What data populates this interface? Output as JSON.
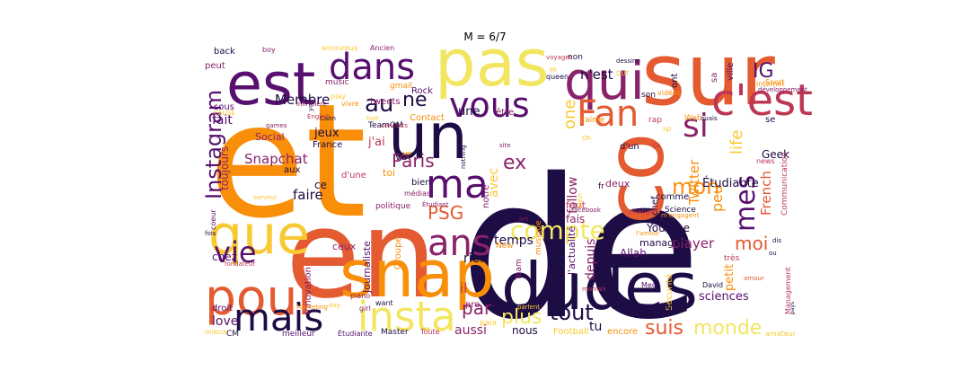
{
  "title": "M = 6/7",
  "palette": [
    "#1e0c45",
    "#57106e",
    "#8a226a",
    "#bc3754",
    "#e45a31",
    "#f98e09",
    "#f9c932",
    "#f2e661"
  ],
  "words": [
    {
      "text": "de",
      "color": "#1e0c45"
    },
    {
      "text": "et",
      "color": "#f98e09"
    },
    {
      "text": "en",
      "color": "#e45a31"
    },
    {
      "text": "sur",
      "color": "#e45a31"
    },
    {
      "text": "pas",
      "color": "#f2e661"
    },
    {
      "text": "dudes",
      "color": "#1e0c45"
    },
    {
      "text": "snap",
      "color": "#f98e09"
    },
    {
      "text": "pour",
      "color": "#e45a31"
    },
    {
      "text": "est",
      "color": "#57106e"
    },
    {
      "text": "un",
      "color": "#1e0c45"
    },
    {
      "text": "que",
      "color": "#f9c932"
    },
    {
      "text": "co",
      "color": "#e45a31"
    },
    {
      "text": "qui",
      "color": "#8a226a"
    },
    {
      "text": "c'est",
      "color": "#bc3754"
    },
    {
      "text": "insta",
      "color": "#f2e661"
    },
    {
      "text": "mais",
      "color": "#1e0c45"
    },
    {
      "text": "dans",
      "color": "#57106e"
    },
    {
      "text": "vous",
      "color": "#57106e"
    },
    {
      "text": "Fan",
      "color": "#e45a31"
    },
    {
      "text": "si",
      "color": "#8a226a"
    },
    {
      "text": "ma",
      "color": "#57106e"
    },
    {
      "text": "ans",
      "color": "#8a226a"
    },
    {
      "text": "vie",
      "color": "#57106e"
    },
    {
      "text": "Instagram",
      "color": "#57106e"
    },
    {
      "text": "mes",
      "color": "#57106e"
    },
    {
      "text": "IG",
      "color": "#57106e"
    },
    {
      "text": "au",
      "color": "#1e0c45"
    },
    {
      "text": "ne",
      "color": "#1e0c45"
    },
    {
      "text": "Paris",
      "color": "#8a226a"
    },
    {
      "text": "ex",
      "color": "#8a226a"
    },
    {
      "text": "mon",
      "color": "#f98e09"
    },
    {
      "text": "compte",
      "color": "#f2e661"
    },
    {
      "text": "PSG",
      "color": "#e45a31"
    },
    {
      "text": "tout",
      "color": "#1e0c45"
    },
    {
      "text": "suis",
      "color": "#e45a31"
    },
    {
      "text": "moi",
      "color": "#e45a31"
    },
    {
      "text": "monde",
      "color": "#f2e661"
    },
    {
      "text": "plus",
      "color": "#f2e661"
    },
    {
      "text": "par",
      "color": "#8a226a"
    },
    {
      "text": "Membre",
      "color": "#1e0c45"
    },
    {
      "text": "Snapchat",
      "color": "#8a226a"
    },
    {
      "text": "faire",
      "color": "#1e0c45"
    },
    {
      "text": "player",
      "color": "#8a226a"
    },
    {
      "text": "Twitter",
      "color": "#f98e09"
    },
    {
      "text": "one",
      "color": "#f9c932"
    },
    {
      "text": "life",
      "color": "#f9c932"
    },
    {
      "text": "French",
      "color": "#e45a31"
    },
    {
      "text": "peu",
      "color": "#f98e09"
    },
    {
      "text": "love",
      "color": "#57106e"
    },
    {
      "text": "fait",
      "color": "#57106e"
    },
    {
      "text": "aussi",
      "color": "#8a226a"
    },
    {
      "text": "nous",
      "color": "#1e0c45"
    },
    {
      "text": "temps",
      "color": "#1e0c45"
    },
    {
      "text": "rien",
      "color": "#1e0c45"
    },
    {
      "text": "il",
      "color": "#bc3754"
    },
    {
      "text": "depuis",
      "color": "#8a226a"
    },
    {
      "text": "follow",
      "color": "#8a226a"
    },
    {
      "text": "avec",
      "color": "#f9c932"
    },
    {
      "text": "sciences",
      "color": "#57106e"
    },
    {
      "text": "tu",
      "color": "#1e0c45"
    },
    {
      "text": "jeux",
      "color": "#1e0c45"
    },
    {
      "text": "j'ai",
      "color": "#bc3754"
    },
    {
      "text": "toujours",
      "color": "#8a226a"
    },
    {
      "text": "Journaliste",
      "color": "#57106e"
    },
    {
      "text": "Innovation",
      "color": "#8a226a"
    },
    {
      "text": "Groupe",
      "color": "#f98e09"
    },
    {
      "text": "une",
      "color": "#1e0c45"
    },
    {
      "text": "n'est",
      "color": "#1e0c45"
    },
    {
      "text": "Étudiante",
      "color": "#1e0c45"
    },
    {
      "text": "Youtube",
      "color": "#1e0c45"
    },
    {
      "text": "Allah",
      "color": "#57106e"
    },
    {
      "text": "manager",
      "color": "#1e0c45"
    },
    {
      "text": "fais",
      "color": "#8a226a"
    },
    {
      "text": "faut",
      "color": "#bc3754"
    },
    {
      "text": "deux",
      "color": "#8a226a"
    },
    {
      "text": "va",
      "color": "#1e0c45"
    },
    {
      "text": "ce",
      "color": "#1e0c45"
    },
    {
      "text": "chez",
      "color": "#57106e"
    },
    {
      "text": "ceux",
      "color": "#8a226a"
    },
    {
      "text": "Social",
      "color": "#8a226a"
    },
    {
      "text": "France",
      "color": "#1e0c45"
    },
    {
      "text": "aux",
      "color": "#1e0c45"
    },
    {
      "text": "Rock",
      "color": "#57106e"
    },
    {
      "text": "Contact",
      "color": "#f98e09"
    },
    {
      "text": "tweets",
      "color": "#8a226a"
    },
    {
      "text": "TeamOM",
      "color": "#1e0c45"
    },
    {
      "text": "être",
      "color": "#8a226a"
    },
    {
      "text": "se",
      "color": "#1e0c45"
    },
    {
      "text": "Geek",
      "color": "#1e0c45"
    },
    {
      "text": "Communication",
      "color": "#bc3754"
    },
    {
      "text": "comme",
      "color": "#1e0c45"
    },
    {
      "text": "chef",
      "color": "#1e0c45"
    },
    {
      "text": "d'un",
      "color": "#1e0c45"
    },
    {
      "text": "l'actualité",
      "color": "#57106e"
    },
    {
      "text": "très",
      "color": "#bc3754"
    },
    {
      "text": "petit",
      "color": "#f98e09"
    },
    {
      "text": "Management",
      "color": "#bc3754"
    },
    {
      "text": "Football",
      "color": "#f9c932"
    },
    {
      "text": "encore",
      "color": "#f98e09"
    },
    {
      "text": "Team",
      "color": "#8a226a"
    },
    {
      "text": "New",
      "color": "#f98e09"
    },
    {
      "text": "pro",
      "color": "#8a226a"
    },
    {
      "text": "paix",
      "color": "#f9c932"
    },
    {
      "text": "Master",
      "color": "#1e0c45"
    },
    {
      "text": "Toute",
      "color": "#bc3754"
    },
    {
      "text": "droit",
      "color": "#57106e"
    },
    {
      "text": "sous",
      "color": "#57106e"
    },
    {
      "text": "back",
      "color": "#1e0c45"
    },
    {
      "text": "peut",
      "color": "#8a226a"
    },
    {
      "text": "gmail",
      "color": "#f98e09"
    },
    {
      "text": "music",
      "color": "#8a226a"
    },
    {
      "text": "non",
      "color": "#1e0c45"
    },
    {
      "text": "J'aime",
      "color": "#f98e09"
    },
    {
      "text": "rap",
      "color": "#bc3754"
    },
    {
      "text": "Web",
      "color": "#f98e09"
    },
    {
      "text": "sa",
      "color": "#8a226a"
    },
    {
      "text": "ville",
      "color": "#57106e"
    },
    {
      "text": "Sport",
      "color": "#f98e09"
    },
    {
      "text": "news",
      "color": "#bc3754"
    },
    {
      "text": "CM",
      "color": "#1e0c45"
    },
    {
      "text": "meilleur",
      "color": "#57106e"
    },
    {
      "text": "Étudiante",
      "color": "#57106e"
    },
    {
      "text": "mieux",
      "color": "#f9c932"
    },
    {
      "text": "amateur",
      "color": "#f9c932"
    },
    {
      "text": "amour",
      "color": "#e45a31"
    },
    {
      "text": "David",
      "color": "#1e0c45"
    },
    {
      "text": "Science",
      "color": "#1e0c45"
    },
    {
      "text": "Mec",
      "color": "#57106e"
    },
    {
      "text": "maman",
      "color": "#bc3754"
    },
    {
      "text": "Sécurité",
      "color": "#f9c932"
    },
    {
      "text": "ni",
      "color": "#1e0c45"
    },
    {
      "text": "notre",
      "color": "#8a226a"
    },
    {
      "text": "musique",
      "color": "#f98e09"
    },
    {
      "text": "fr",
      "color": "#1e0c45"
    },
    {
      "text": "bien",
      "color": "#1e0c45"
    },
    {
      "text": "toi",
      "color": "#f98e09"
    },
    {
      "text": "d'une",
      "color": "#bc3754"
    },
    {
      "text": "politique",
      "color": "#8a226a"
    },
    {
      "text": "médias",
      "color": "#8a226a"
    },
    {
      "text": "piano",
      "color": "#8a226a"
    },
    {
      "text": "girl",
      "color": "#8a226a"
    },
    {
      "text": "want",
      "color": "#1e0c45"
    },
    {
      "text": "day",
      "color": "#f9c932"
    },
    {
      "text": "Marketing",
      "color": "#f98e09"
    },
    {
      "text": "fondateur",
      "color": "#bc3754"
    },
    {
      "text": "fois",
      "color": "#1e0c45"
    },
    {
      "text": "coeur",
      "color": "#57106e"
    },
    {
      "text": "serveur",
      "color": "#f9c932"
    },
    {
      "text": "boy",
      "color": "#8a226a"
    },
    {
      "text": "amoureux",
      "color": "#f9c932"
    },
    {
      "text": "Ancien",
      "color": "#8a226a"
    },
    {
      "text": "dessine",
      "color": "#1e0c45"
    },
    {
      "text": "play",
      "color": "#f9c932"
    },
    {
      "text": "vivre",
      "color": "#f98e09"
    },
    {
      "text": "yo",
      "color": "#1e0c45"
    },
    {
      "text": "infirmière",
      "color": "#8a226a"
    },
    {
      "text": "Caen",
      "color": "#1e0c45"
    },
    {
      "text": "English",
      "color": "#bc3754"
    },
    {
      "text": "games",
      "color": "#8a226a"
    },
    {
      "text": "CAUSE",
      "color": "#f9c932"
    },
    {
      "text": "foot",
      "color": "#f9c932"
    },
    {
      "text": "concerts",
      "color": "#bc3754"
    },
    {
      "text": "MP",
      "color": "#f98e09"
    },
    {
      "text": "nothing",
      "color": "#1e0c45"
    },
    {
      "text": "site",
      "color": "#8a226a"
    },
    {
      "text": "art",
      "color": "#8a226a"
    },
    {
      "text": "parlent",
      "color": "#f9c932"
    },
    {
      "text": "Oh",
      "color": "#f9c932"
    },
    {
      "text": "queen",
      "color": "#1e0c45"
    },
    {
      "text": "voyages",
      "color": "#bc3754"
    },
    {
      "text": "DUT",
      "color": "#f9c932"
    },
    {
      "text": "son",
      "color": "#1e0c45"
    },
    {
      "text": "vidéos",
      "color": "#f98e09"
    },
    {
      "text": "ont",
      "color": "#1e0c45"
    },
    {
      "text": "ouais",
      "color": "#1e0c45"
    },
    {
      "text": "internet",
      "color": "#f98e09"
    },
    {
      "text": "développement",
      "color": "#8a226a"
    },
    {
      "text": "ou",
      "color": "#1e0c45"
    },
    {
      "text": "dis",
      "color": "#1e0c45"
    },
    {
      "text": "pays",
      "color": "#1e0c45"
    },
    {
      "text": "changer",
      "color": "#bc3754"
    },
    {
      "text": "m'engagent",
      "color": "#f98e09"
    },
    {
      "text": "l'amour",
      "color": "#f98e09"
    },
    {
      "text": "plein",
      "color": "#f9c932"
    },
    {
      "text": "Facebook",
      "color": "#8a226a"
    },
    {
      "text": "Étudiant",
      "color": "#8a226a"
    },
    {
      "text": "Mi",
      "color": "#f9c932"
    },
    {
      "text": "sp",
      "color": "#f9c932"
    },
    {
      "text": "ça",
      "color": "#bc3754"
    },
    {
      "text": "d'",
      "color": "#1e0c45"
    },
    {
      "text": "l'",
      "color": "#8a226a"
    }
  ]
}
